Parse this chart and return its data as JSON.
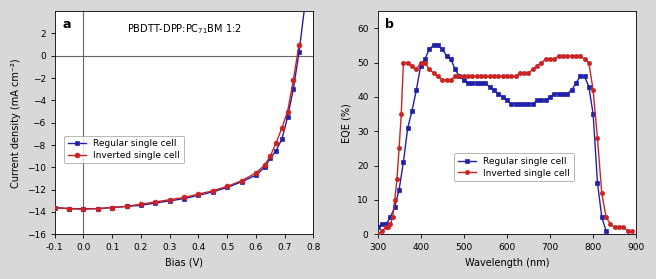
{
  "panel_a": {
    "xlabel": "Bias (V)",
    "ylabel": "Current density (mA cm⁻²)",
    "xlim": [
      -0.1,
      0.8
    ],
    "ylim": [
      -16,
      4
    ],
    "yticks": [
      -16,
      -14,
      -12,
      -10,
      -8,
      -6,
      -4,
      -2,
      0,
      2
    ],
    "xticks": [
      -0.1,
      0.0,
      0.1,
      0.2,
      0.3,
      0.4,
      0.5,
      0.6,
      0.7,
      0.8
    ],
    "regular_x": [
      -0.1,
      -0.05,
      0.0,
      0.05,
      0.1,
      0.15,
      0.2,
      0.25,
      0.3,
      0.35,
      0.4,
      0.45,
      0.5,
      0.55,
      0.6,
      0.63,
      0.65,
      0.67,
      0.69,
      0.71,
      0.73,
      0.75,
      0.77
    ],
    "regular_y": [
      -13.6,
      -13.7,
      -13.7,
      -13.7,
      -13.6,
      -13.5,
      -13.4,
      -13.2,
      -13.0,
      -12.8,
      -12.5,
      -12.2,
      -11.8,
      -11.3,
      -10.7,
      -10.0,
      -9.2,
      -8.5,
      -7.5,
      -5.5,
      -3.0,
      0.3,
      4.5
    ],
    "inverted_x": [
      -0.1,
      -0.05,
      0.0,
      0.05,
      0.1,
      0.15,
      0.2,
      0.25,
      0.3,
      0.35,
      0.4,
      0.45,
      0.5,
      0.55,
      0.6,
      0.63,
      0.65,
      0.67,
      0.69,
      0.71,
      0.73,
      0.75
    ],
    "inverted_y": [
      -13.6,
      -13.7,
      -13.75,
      -13.7,
      -13.6,
      -13.5,
      -13.3,
      -13.1,
      -12.9,
      -12.7,
      -12.4,
      -12.1,
      -11.7,
      -11.2,
      -10.5,
      -9.8,
      -9.0,
      -7.8,
      -6.5,
      -5.0,
      -2.2,
      1.0
    ],
    "regular_color": "#2020aa",
    "inverted_color": "#cc2222",
    "annotation": "PBDTT-DPP:PC$_{71}$BM 1:2",
    "label_a": "a"
  },
  "panel_b": {
    "xlabel": "Wavelength (nm)",
    "ylabel": "EQE (%)",
    "xlim": [
      300,
      900
    ],
    "ylim": [
      0,
      65
    ],
    "yticks": [
      0,
      10,
      20,
      30,
      40,
      50,
      60
    ],
    "xticks": [
      300,
      400,
      500,
      600,
      700,
      800,
      900
    ],
    "regular_wl": [
      300,
      310,
      320,
      330,
      340,
      350,
      360,
      370,
      380,
      390,
      400,
      410,
      420,
      430,
      440,
      450,
      460,
      470,
      480,
      490,
      500,
      510,
      520,
      530,
      540,
      550,
      560,
      570,
      580,
      590,
      600,
      610,
      620,
      630,
      640,
      650,
      660,
      670,
      680,
      690,
      700,
      710,
      720,
      730,
      740,
      750,
      760,
      770,
      780,
      790,
      800,
      810,
      820,
      830
    ],
    "regular_eqe": [
      2,
      3,
      3,
      5,
      8,
      13,
      21,
      31,
      36,
      42,
      49,
      51,
      54,
      55,
      55,
      54,
      52,
      51,
      48,
      46,
      45,
      44,
      44,
      44,
      44,
      44,
      43,
      42,
      41,
      40,
      39,
      38,
      38,
      38,
      38,
      38,
      38,
      39,
      39,
      39,
      40,
      41,
      41,
      41,
      41,
      42,
      44,
      46,
      46,
      43,
      35,
      15,
      5,
      1
    ],
    "inverted_wl": [
      300,
      310,
      320,
      325,
      330,
      335,
      340,
      345,
      350,
      355,
      360,
      370,
      380,
      390,
      400,
      410,
      420,
      430,
      440,
      450,
      460,
      470,
      480,
      490,
      500,
      510,
      520,
      530,
      540,
      550,
      560,
      570,
      580,
      590,
      600,
      610,
      620,
      630,
      640,
      650,
      660,
      670,
      680,
      690,
      700,
      710,
      720,
      730,
      740,
      750,
      760,
      770,
      780,
      790,
      800,
      810,
      820,
      830,
      840,
      850,
      860,
      870,
      880,
      890
    ],
    "inverted_eqe": [
      0,
      1,
      2,
      2,
      3,
      5,
      10,
      16,
      25,
      35,
      50,
      50,
      49,
      48,
      50,
      50,
      48,
      47,
      46,
      45,
      45,
      45,
      46,
      46,
      46,
      46,
      46,
      46,
      46,
      46,
      46,
      46,
      46,
      46,
      46,
      46,
      46,
      47,
      47,
      47,
      48,
      49,
      50,
      51,
      51,
      51,
      52,
      52,
      52,
      52,
      52,
      52,
      51,
      50,
      42,
      28,
      12,
      5,
      3,
      2,
      2,
      2,
      1,
      1
    ],
    "regular_color": "#2020aa",
    "inverted_color": "#cc2222",
    "label_b": "b"
  },
  "fig_bg": "#d8d8d8",
  "plot_bg": "#ffffff"
}
